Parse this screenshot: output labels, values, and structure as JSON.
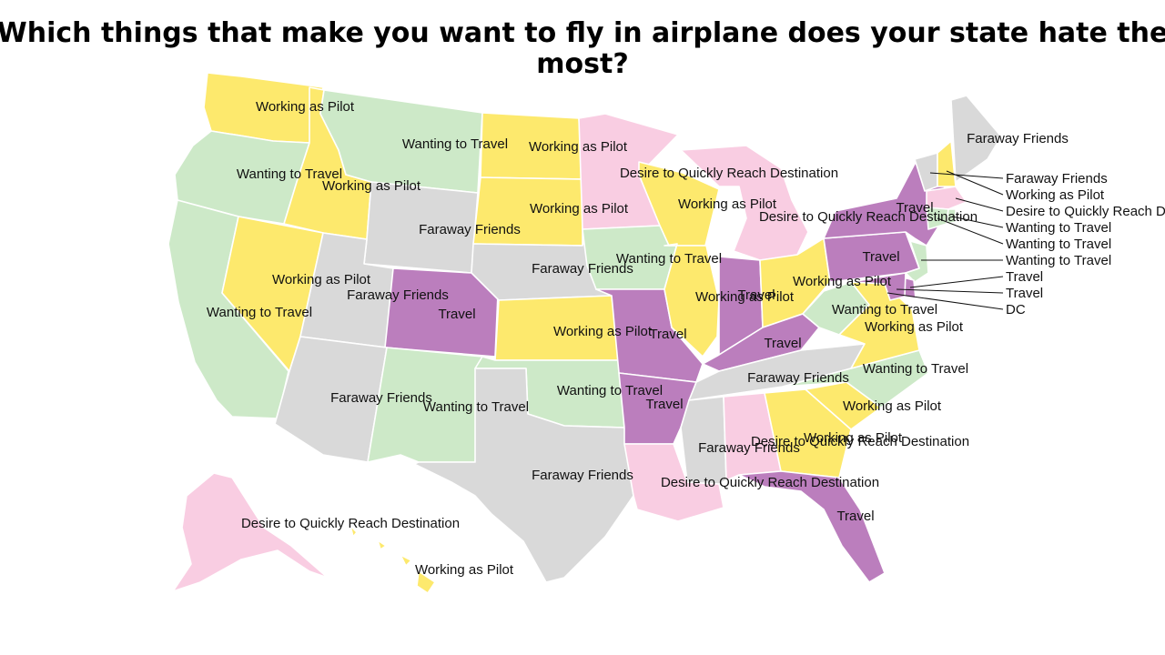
{
  "title_line1": "Which things that make you want to fly in airplane does your state hate the",
  "title_line2": "most?",
  "colors": {
    "Working as Pilot": "#fde96d",
    "Wanting to Travel": "#cde9c8",
    "Faraway Friends": "#d9d9d9",
    "Desire to Quickly Reach Destination": "#f9cde2",
    "Travel": "#bb7ebd"
  },
  "states": {
    "WA": "Working as Pilot",
    "OR": "Wanting to Travel",
    "CA": "Wanting to Travel",
    "ID": "Working as Pilot",
    "NV": "Working as Pilot",
    "MT": "Wanting to Travel",
    "WY": "Faraway Friends",
    "UT": "Faraway Friends",
    "CO": "Travel",
    "AZ": "Faraway Friends",
    "NM": "Wanting to Travel",
    "ND": "Working as Pilot",
    "SD": "Working as Pilot",
    "NE": "Faraway Friends",
    "KS": "Working as Pilot",
    "OK": "Wanting to Travel",
    "TX": "Faraway Friends",
    "MN": "Desire to Quickly Reach Destination",
    "IA": "Wanting to Travel",
    "MO": "Travel",
    "AR": "Travel",
    "LA": "Desire to Quickly Reach Destination",
    "WI": "Working as Pilot",
    "IL": "Working as Pilot",
    "MI": "Desire to Quickly Reach Destination",
    "IN": "Travel",
    "OH": "Working as Pilot",
    "KY": "Travel",
    "TN": "Faraway Friends",
    "MS": "Faraway Friends",
    "AL": "Desire to Quickly Reach Destination",
    "GA": "Working as Pilot",
    "FL": "Travel",
    "SC": "Working as Pilot",
    "NC": "Wanting to Travel",
    "VA": "Working as Pilot",
    "WV": "Wanting to Travel",
    "PA": "Travel",
    "NY": "Travel",
    "NJ": "Wanting to Travel",
    "DE": "Travel",
    "MD": "Travel",
    "ME": "Faraway Friends",
    "VT": "Faraway Friends",
    "NH": "Working as Pilot",
    "MA": "Desire to Quickly Reach Destination",
    "CT": "Wanting to Travel",
    "RI": "Wanting to Travel",
    "AK": "Desire to Quickly Reach Destination",
    "HI": "Working as Pilot"
  },
  "labels": [
    {
      "text": "Working as Pilot",
      "state": "WA"
    },
    {
      "text": "Wanting to Travel",
      "state": "OR"
    },
    {
      "text": "Working as Pilot",
      "state": "ID"
    },
    {
      "text": "Wanting to Travel",
      "state": "MT"
    },
    {
      "text": "Working as Pilot",
      "state": "ND"
    },
    {
      "text": "Desire to Quickly Reach Destination",
      "state": "MN"
    },
    {
      "text": "Working as Pilot",
      "state": "SD"
    },
    {
      "text": "Faraway Friends",
      "state": "WY"
    },
    {
      "text": "Working as Pilot",
      "state": "NV"
    },
    {
      "text": "Faraway Friends",
      "state": "UT"
    },
    {
      "text": "Wanting to Travel",
      "state": "CA"
    },
    {
      "text": "Travel",
      "state": "CO"
    },
    {
      "text": "Faraway Friends",
      "state": "NE"
    },
    {
      "text": "Wanting to Travel",
      "state": "IA"
    },
    {
      "text": "Working as Pilot",
      "state": "WI"
    },
    {
      "text": "Desire to Quickly Reach Destination",
      "state": "MI"
    },
    {
      "text": "Working as Pilot",
      "state": "IL"
    },
    {
      "text": "Travel",
      "state": "IN"
    },
    {
      "text": "Working as Pilot",
      "state": "OH"
    },
    {
      "text": "Working as Pilot",
      "state": "KS"
    },
    {
      "text": "Travel",
      "state": "MO"
    },
    {
      "text": "Travel",
      "state": "KY"
    },
    {
      "text": "Wanting to Travel",
      "state": "WV"
    },
    {
      "text": "Working as Pilot",
      "state": "VA"
    },
    {
      "text": "Faraway Friends",
      "state": "AZ"
    },
    {
      "text": "Wanting to Travel",
      "state": "NM"
    },
    {
      "text": "Wanting to Travel",
      "state": "OK"
    },
    {
      "text": "Travel",
      "state": "AR"
    },
    {
      "text": "Faraway Friends",
      "state": "TN"
    },
    {
      "text": "Wanting to Travel",
      "state": "NC"
    },
    {
      "text": "Working as Pilot",
      "state": "SC"
    },
    {
      "text": "Working as Pilot",
      "state": "GA"
    },
    {
      "text": "Faraway Friends",
      "state": "MS"
    },
    {
      "text": "Desire to Quickly Reach Destination",
      "state": "AL"
    },
    {
      "text": "Faraway Friends",
      "state": "TX"
    },
    {
      "text": "Desire to Quickly Reach Destination",
      "state": "LA"
    },
    {
      "text": "Travel",
      "state": "FL"
    },
    {
      "text": "Desire to Quickly Reach Destination",
      "state": "AK"
    },
    {
      "text": "Working as Pilot",
      "state": "HI"
    },
    {
      "text": "Travel",
      "state": "NY"
    },
    {
      "text": "Travel",
      "state": "PA"
    },
    {
      "text": "Faraway Friends",
      "state": "ME"
    }
  ],
  "callouts": [
    {
      "text": "Faraway Friends",
      "state": "VT"
    },
    {
      "text": "Working as Pilot",
      "state": "NH"
    },
    {
      "text": "Desire to Quickly Reach Destination",
      "state": "MA"
    },
    {
      "text": "Wanting to Travel",
      "state": "RI"
    },
    {
      "text": "Wanting to Travel",
      "state": "CT"
    },
    {
      "text": "Wanting to Travel",
      "state": "NJ"
    },
    {
      "text": "Travel",
      "state": "DE"
    },
    {
      "text": "Travel",
      "state": "MD"
    },
    {
      "text": "DC",
      "state": "DC"
    }
  ]
}
